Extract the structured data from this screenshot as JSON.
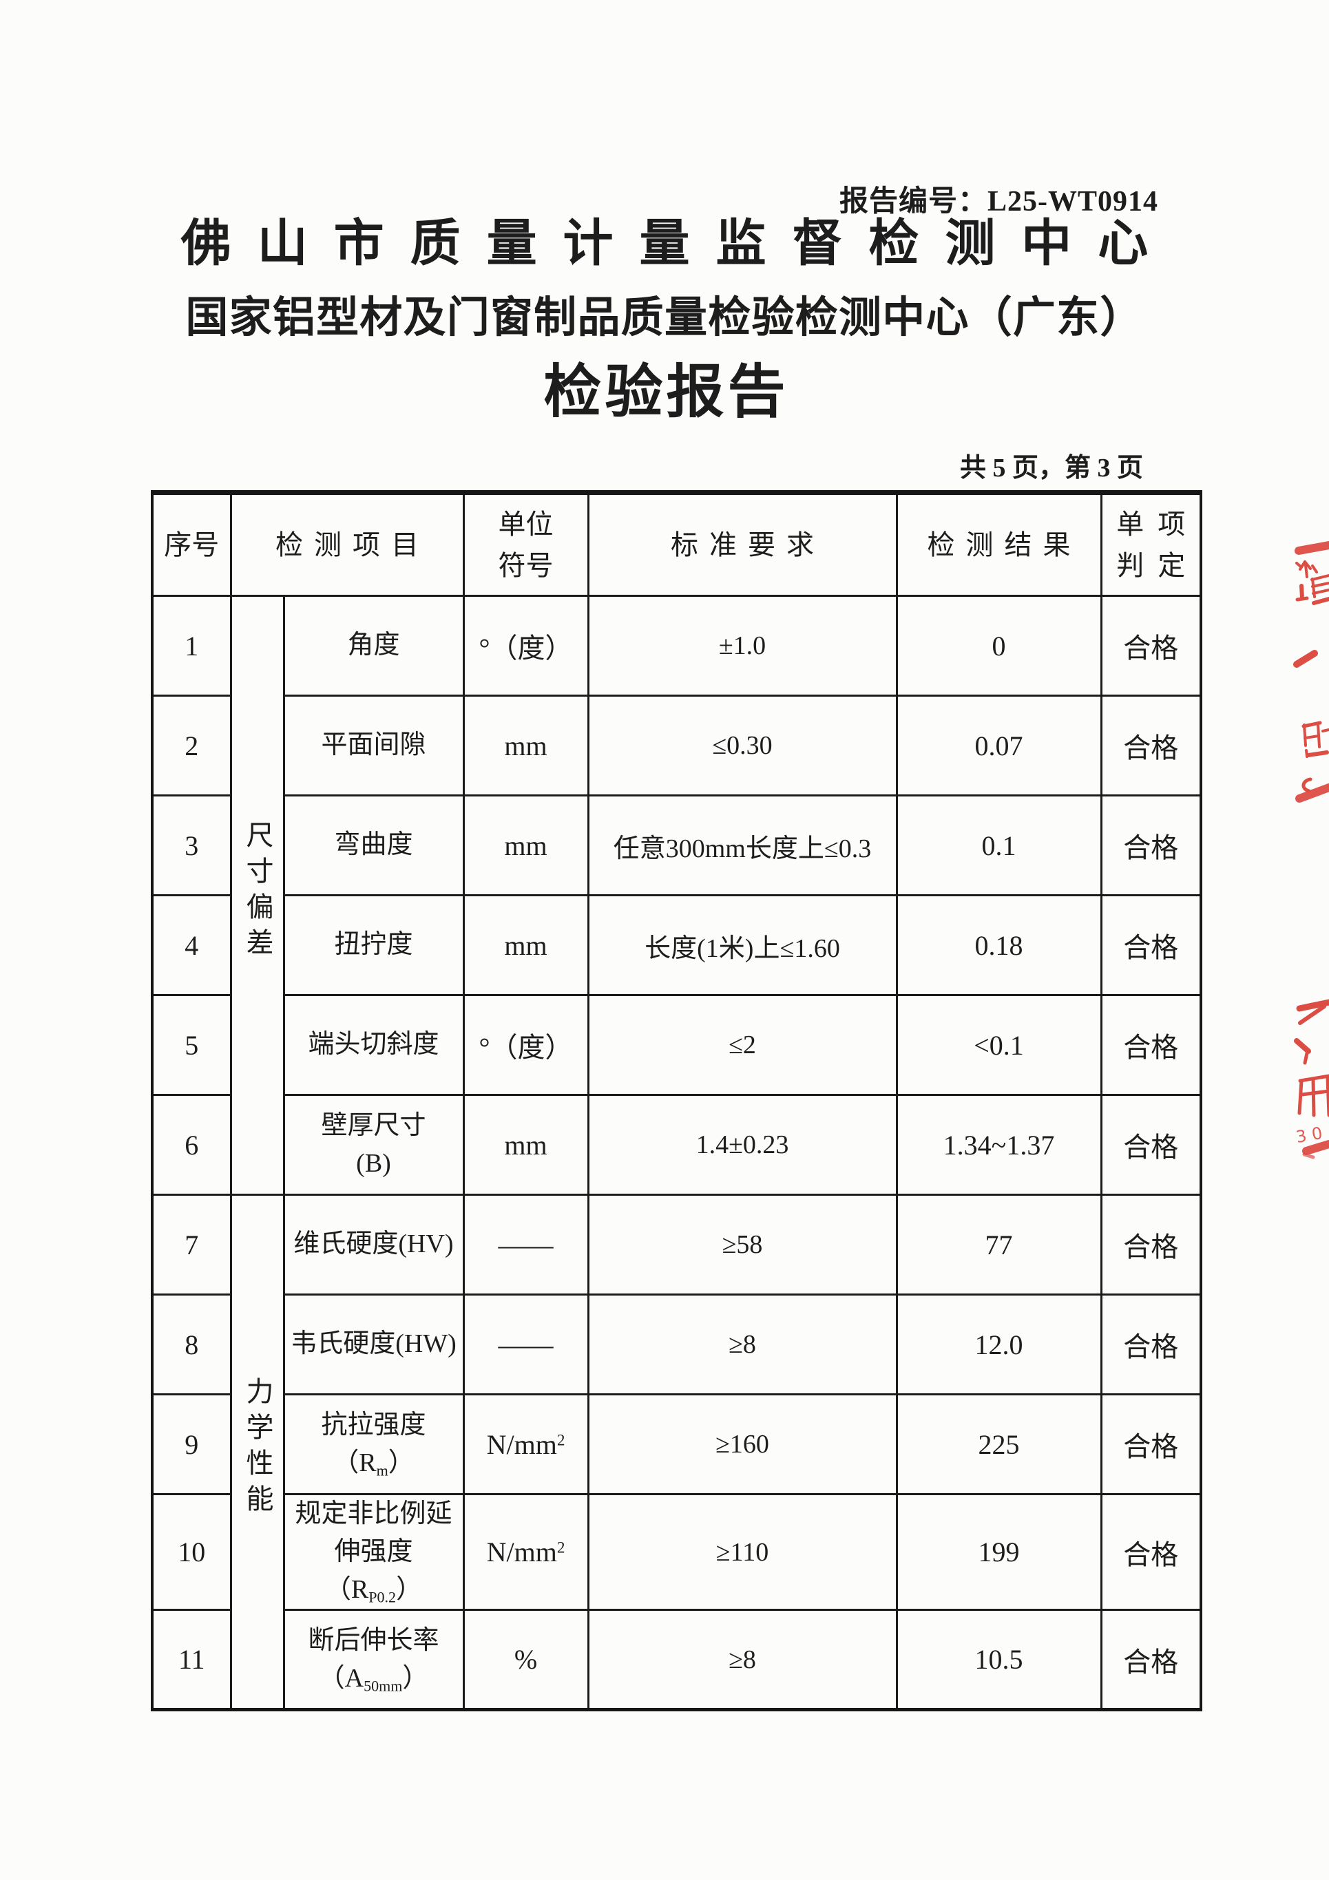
{
  "colors": {
    "stamp_red": "#d8352b",
    "ink": "#1d1d1d",
    "paper": "#fcfcfb"
  },
  "header": {
    "report_no_label": "报告编号：",
    "report_no": "L25-WT0914",
    "org_line1": "佛山市质量计量监督检测中心",
    "org_line2": "国家铝型材及门窗制品质量检验检测中心（广东）",
    "doc_title": "检验报告",
    "page_info": "共 5 页，第 3 页"
  },
  "table": {
    "head": {
      "no": "序号",
      "item": "检测项目",
      "unit_line1": "单位",
      "unit_line2": "符号",
      "standard": "标准要求",
      "result": "检测结果",
      "verdict_line1": "单项",
      "verdict_line2": "判定"
    },
    "groups": [
      {
        "label": "尺寸偏差"
      },
      {
        "label": "力学性能"
      }
    ],
    "rows": [
      {
        "no": "1",
        "item": "角度",
        "unit": "°（度）",
        "standard": "±1.0",
        "result": "0",
        "verdict": "合格"
      },
      {
        "no": "2",
        "item": "平面间隙",
        "unit": "mm",
        "standard": "≤0.30",
        "result": "0.07",
        "verdict": "合格"
      },
      {
        "no": "3",
        "item": "弯曲度",
        "unit": "mm",
        "standard": "任意300mm长度上≤0.3",
        "result": "0.1",
        "verdict": "合格"
      },
      {
        "no": "4",
        "item": "扭拧度",
        "unit": "mm",
        "standard": "长度(1米)上≤1.60",
        "result": "0.18",
        "verdict": "合格"
      },
      {
        "no": "5",
        "item": "端头切斜度",
        "unit": "°（度）",
        "standard": "≤2",
        "result": "<0.1",
        "verdict": "合格"
      },
      {
        "no": "6",
        "item": "壁厚尺寸<br>(B)",
        "unit": "mm",
        "standard": "1.4±0.23",
        "result": "1.34~1.37",
        "verdict": "合格"
      },
      {
        "no": "7",
        "item": "维氏硬度(HV)",
        "unit": "——",
        "standard": "≥58",
        "result": "77",
        "verdict": "合格"
      },
      {
        "no": "8",
        "item": "韦氏硬度(HW)",
        "unit": "——",
        "standard": "≥8",
        "result": "12.0",
        "verdict": "合格"
      },
      {
        "no": "9",
        "item": "抗拉强度<br>（R<sub>m</sub>）",
        "unit": "N/mm<sup>2</sup>",
        "standard": "≥160",
        "result": "225",
        "verdict": "合格"
      },
      {
        "no": "10",
        "item": "规定非比例延<br>伸强度（R<sub>P0.2</sub>）",
        "unit": "N/mm<sup>2</sup>",
        "standard": "≥110",
        "result": "199",
        "verdict": "合格"
      },
      {
        "no": "11",
        "item": "断后伸长率<br>（A<sub>50mm</sub>）",
        "unit": "%",
        "standard": "≥8",
        "result": "10.5",
        "verdict": "合格"
      }
    ]
  },
  "stamp": {
    "fragment_text": "30"
  }
}
